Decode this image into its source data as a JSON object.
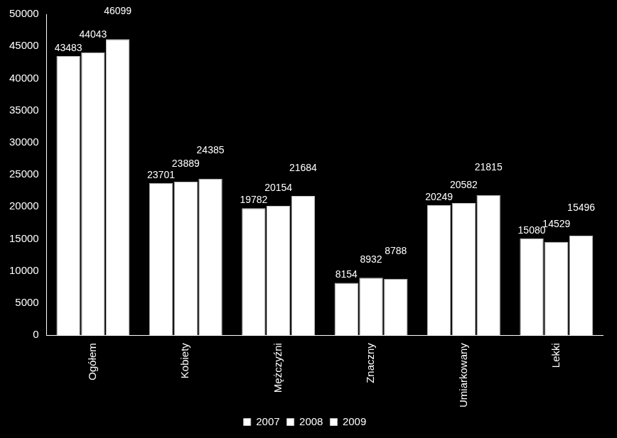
{
  "chart_data": {
    "type": "bar",
    "categories": [
      "Ogółem",
      "Kobiety",
      "Mężczyźni",
      "Znaczny",
      "Umiarkowany",
      "Lekki"
    ],
    "series": [
      {
        "name": "2007",
        "color": "#ffffff",
        "values": [
          43483,
          23701,
          19782,
          8154,
          20249,
          15080
        ]
      },
      {
        "name": "2008",
        "color": "#ffffff",
        "values": [
          44043,
          23889,
          20154,
          8932,
          20582,
          14529
        ]
      },
      {
        "name": "2009",
        "color": "#ffffff",
        "values": [
          46099,
          24385,
          21684,
          8788,
          21815,
          15496
        ]
      }
    ],
    "ylim": [
      0,
      50000
    ],
    "yticks": [
      0,
      5000,
      10000,
      15000,
      20000,
      25000,
      30000,
      35000,
      40000,
      45000,
      50000
    ],
    "grid": false,
    "legend": "bottom",
    "data_labels": true
  }
}
